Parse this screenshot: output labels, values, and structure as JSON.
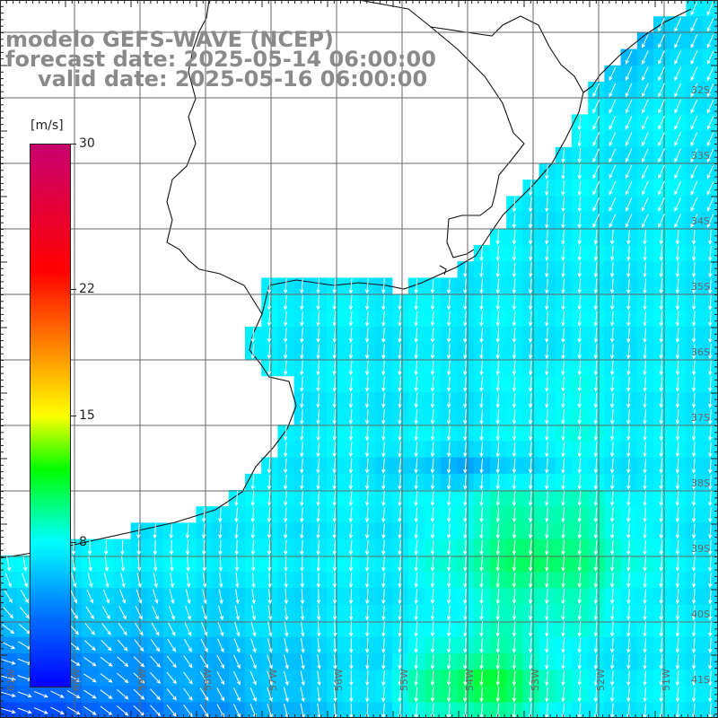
{
  "header": {
    "line1": "modelo GEFS-WAVE (NCEP)",
    "line2": "forecast date: 2025-05-14 06:00:00",
    "line3": "valid date: 2025-05-16 06:00:00"
  },
  "colorbar": {
    "unit": "[m/s]",
    "min": 0,
    "max": 30,
    "ticks": [
      {
        "label": "30",
        "value": 30
      },
      {
        "label": "22",
        "value": 22
      },
      {
        "label": "15",
        "value": 15
      },
      {
        "label": "8",
        "value": 8
      }
    ],
    "colors": [
      "#0000ff",
      "#0073ff",
      "#00ffff",
      "#00ff00",
      "#ffff00",
      "#ff8000",
      "#ff0000",
      "#c8006e"
    ]
  },
  "map": {
    "lon_labels": [
      "61W",
      "60W",
      "59W",
      "58W",
      "57W",
      "56W",
      "55W",
      "54W",
      "53W",
      "52W",
      "51W"
    ],
    "lat_labels": [
      "32S",
      "33S",
      "34S",
      "35S",
      "36S",
      "37S",
      "38S",
      "39S",
      "40S",
      "41S"
    ],
    "land_color": "#ffffff",
    "grid_color": "#666666",
    "arrow_color": "#ffffff"
  }
}
